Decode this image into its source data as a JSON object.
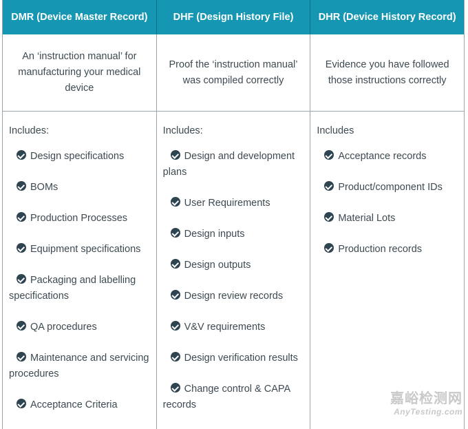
{
  "columns": [
    {
      "header": "DMR (Device Master Record)",
      "description": "An ‘instruction manual’ for manufacturing your medical device",
      "includes_label": "Includes:",
      "items": [
        "Design specifications",
        "BOMs",
        "Production Processes",
        "Equipment specifications",
        "Packaging and labelling specifications",
        "QA procedures",
        "Maintenance and servicing procedures",
        "Acceptance Criteria"
      ]
    },
    {
      "header": "DHF (Design History File)",
      "description": "Proof the ‘instruction manual’ was compiled correctly",
      "includes_label": "Includes:",
      "items": [
        "Design and development plans",
        "User Requirements",
        "Design inputs",
        "Design outputs",
        "Design review records",
        "V&V requirements",
        "Design verification results",
        "Change control & CAPA records"
      ]
    },
    {
      "header": "DHR (Device History Record)",
      "description": "Evidence you have followed those instructions correctly",
      "includes_label": "Includes",
      "items": [
        "Acceptance records",
        "Product/component IDs",
        "Material Lots",
        "Production records"
      ]
    }
  ],
  "watermark": {
    "cn": "嘉峪检测网",
    "en": "AnyTesting.com"
  },
  "colors": {
    "header_bg": "#1596b3",
    "check": "#2e4451"
  }
}
